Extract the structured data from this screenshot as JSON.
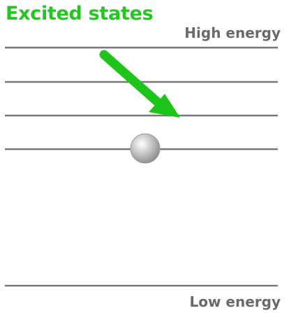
{
  "title": "Excited states",
  "labels": {
    "high": "High energy",
    "low": "Low energy"
  },
  "colors": {
    "title": "#22c81e",
    "arrow": "#1fc41b",
    "line": "#777777",
    "label": "#6a6a6a",
    "electron_light": "#ffffff",
    "electron_dark": "#8a8a8a"
  },
  "icons": {
    "arrow": "arrow-down-right-icon",
    "electron": "electron-ball-icon"
  },
  "levels": [
    {
      "name": "level-4",
      "state": "excited"
    },
    {
      "name": "level-3",
      "state": "excited"
    },
    {
      "name": "level-2",
      "state": "excited"
    },
    {
      "name": "level-1",
      "state": "occupied"
    },
    {
      "name": "level-0",
      "state": "ground"
    }
  ]
}
